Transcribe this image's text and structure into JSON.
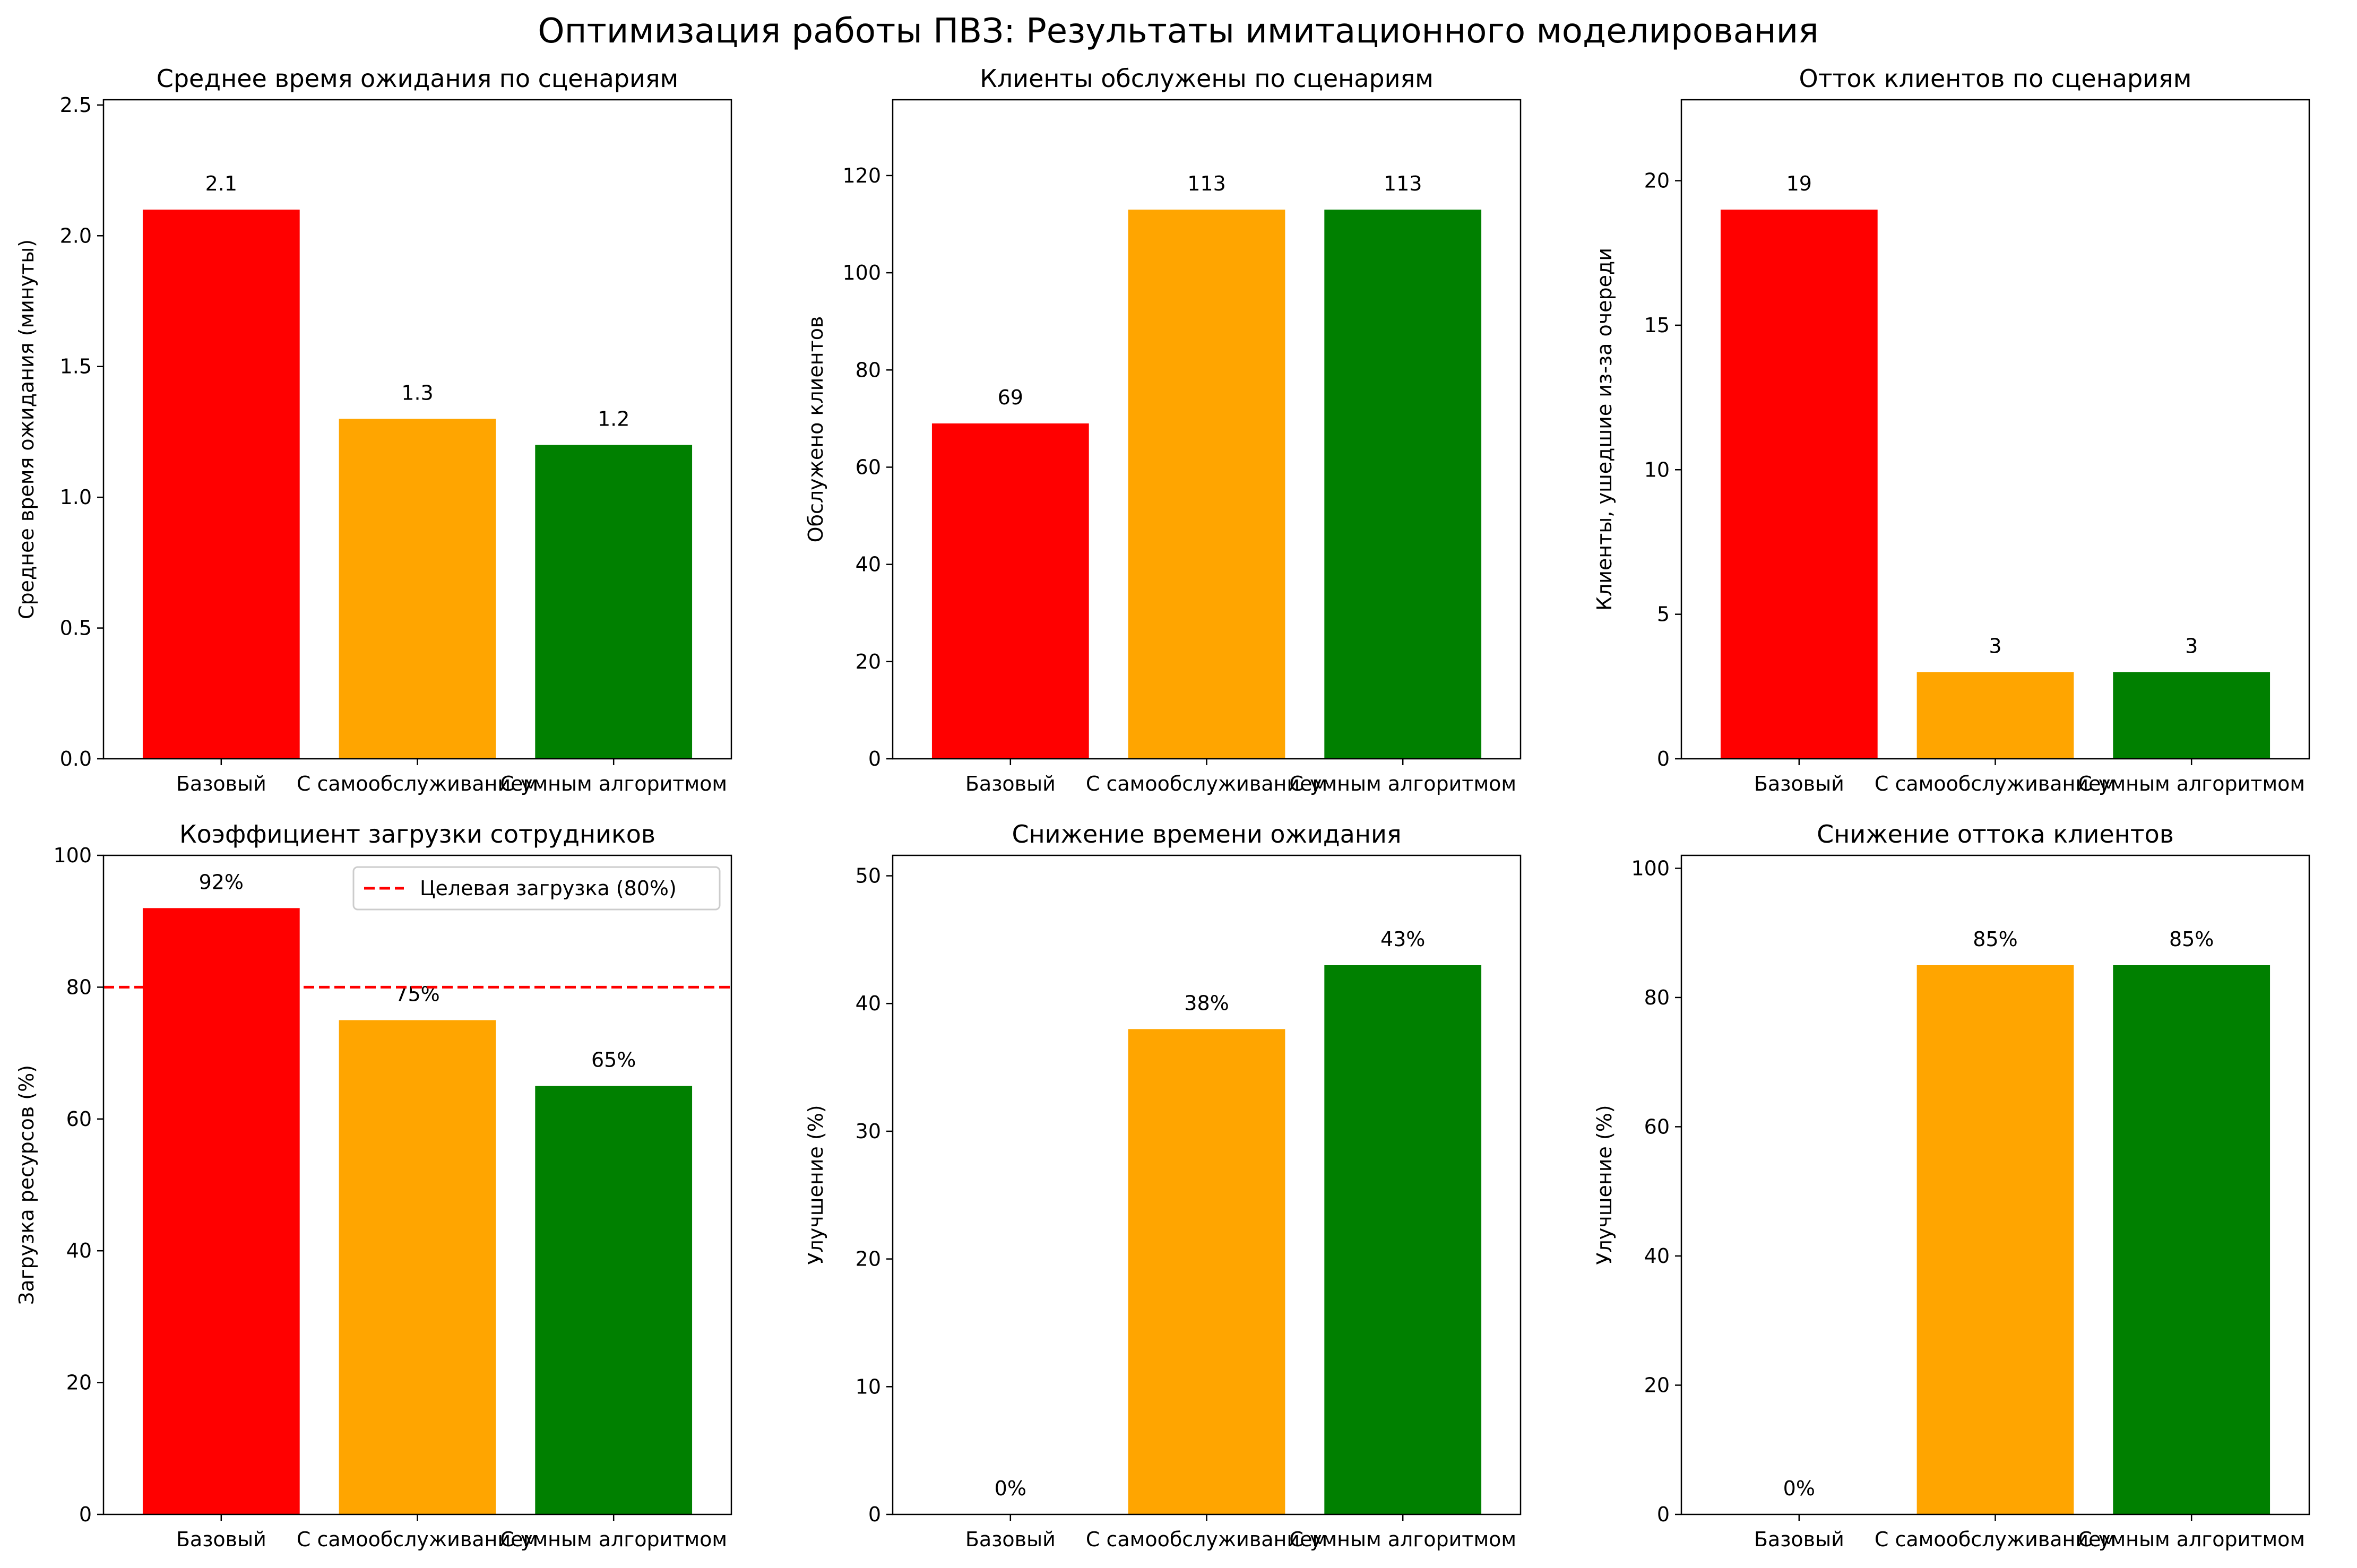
{
  "figure": {
    "title": "Оптимизация работы ПВЗ: Результаты имитационного моделирования"
  },
  "colors": {
    "base": "#ff0000",
    "selfservice": "#ffa500",
    "smart": "#008000",
    "target_line": "#ff0000"
  },
  "chart_data": [
    {
      "type": "bar",
      "title": "Среднее время ожидания по сценариям",
      "xlabel": "",
      "ylabel": "Среднее время ожидания (минуты)",
      "categories": [
        "Базовый",
        "С самообслуживанием",
        "С умным алгоритмом"
      ],
      "values": [
        2.1,
        1.3,
        1.2
      ],
      "bar_labels": [
        "2.1",
        "1.3",
        "1.2"
      ],
      "ylim": [
        0,
        2.52
      ],
      "yticks": [
        0.0,
        0.5,
        1.0,
        1.5,
        2.0,
        2.5
      ],
      "ytick_labels": [
        "0.0",
        "0.5",
        "1.0",
        "1.5",
        "2.0",
        "2.5"
      ],
      "colors": [
        "#ff0000",
        "#ffa500",
        "#008000"
      ],
      "grid": false
    },
    {
      "type": "bar",
      "title": "Клиенты обслужены по сценариям",
      "xlabel": "",
      "ylabel": "Обслужено клиентов",
      "categories": [
        "Базовый",
        "С самообслуживанием",
        "С умным алгоритмом"
      ],
      "values": [
        69,
        113,
        113
      ],
      "bar_labels": [
        "69",
        "113",
        "113"
      ],
      "ylim": [
        0,
        135.6
      ],
      "yticks": [
        0,
        20,
        40,
        60,
        80,
        100,
        120
      ],
      "ytick_labels": [
        "0",
        "20",
        "40",
        "60",
        "80",
        "100",
        "120"
      ],
      "colors": [
        "#ff0000",
        "#ffa500",
        "#008000"
      ],
      "grid": false
    },
    {
      "type": "bar",
      "title": "Отток клиентов по сценариям",
      "xlabel": "",
      "ylabel": "Клиенты, ушедшие из-за очереди",
      "categories": [
        "Базовый",
        "С самообслуживанием",
        "С умным алгоритмом"
      ],
      "values": [
        19,
        3,
        3
      ],
      "bar_labels": [
        "19",
        "3",
        "3"
      ],
      "ylim": [
        0,
        22.8
      ],
      "yticks": [
        0,
        5,
        10,
        15,
        20
      ],
      "ytick_labels": [
        "0",
        "5",
        "10",
        "15",
        "20"
      ],
      "colors": [
        "#ff0000",
        "#ffa500",
        "#008000"
      ],
      "grid": false
    },
    {
      "type": "bar",
      "title": "Коэффициент загрузки сотрудников",
      "xlabel": "",
      "ylabel": "Загрузка ресурсов (%)",
      "categories": [
        "Базовый",
        "С самообслуживанием",
        "С умным алгоритмом"
      ],
      "values": [
        92,
        75,
        65
      ],
      "bar_labels": [
        "92%",
        "75%",
        "65%"
      ],
      "ylim": [
        0,
        100
      ],
      "yticks": [
        0,
        20,
        40,
        60,
        80,
        100
      ],
      "ytick_labels": [
        "0",
        "20",
        "40",
        "60",
        "80",
        "100"
      ],
      "colors": [
        "#ff0000",
        "#ffa500",
        "#008000"
      ],
      "reference_line": {
        "y": 80,
        "label": "Целевая загрузка (80%)",
        "style": "dashed",
        "color": "#ff0000"
      },
      "legend": "top-right",
      "grid": false
    },
    {
      "type": "bar",
      "title": "Снижение времени ожидания",
      "xlabel": "",
      "ylabel": "Улучшение (%)",
      "categories": [
        "Базовый",
        "С самообслуживанием",
        "С умным алгоритмом"
      ],
      "values": [
        0,
        38,
        43
      ],
      "bar_labels": [
        "0%",
        "38%",
        "43%"
      ],
      "ylim": [
        0,
        51.6
      ],
      "yticks": [
        0,
        10,
        20,
        30,
        40,
        50
      ],
      "ytick_labels": [
        "0",
        "10",
        "20",
        "30",
        "40",
        "50"
      ],
      "colors": [
        "#ff0000",
        "#ffa500",
        "#008000"
      ],
      "grid": false
    },
    {
      "type": "bar",
      "title": "Снижение оттока клиентов",
      "xlabel": "",
      "ylabel": "Улучшение (%)",
      "categories": [
        "Базовый",
        "С самообслуживанием",
        "С умным алгоритмом"
      ],
      "values": [
        0,
        85,
        85
      ],
      "bar_labels": [
        "0%",
        "85%",
        "85%"
      ],
      "ylim": [
        0,
        102
      ],
      "yticks": [
        0,
        20,
        40,
        60,
        80,
        100
      ],
      "ytick_labels": [
        "0",
        "20",
        "40",
        "60",
        "80",
        "100"
      ],
      "colors": [
        "#ff0000",
        "#ffa500",
        "#008000"
      ],
      "grid": false
    }
  ]
}
